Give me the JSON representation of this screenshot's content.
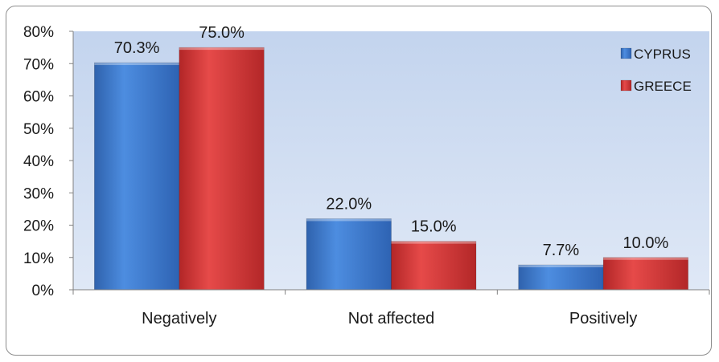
{
  "chart_data": {
    "type": "bar",
    "title": "",
    "xlabel": "",
    "ylabel": "",
    "categories": [
      "Negatively",
      "Not affected",
      "Positively"
    ],
    "series": [
      {
        "name": "CYPRUS",
        "values": [
          70.3,
          22.0,
          7.7
        ],
        "labels": [
          "70.3%",
          "22.0%",
          "7.7%"
        ],
        "color": "#3f7fd3"
      },
      {
        "name": "GREECE",
        "values": [
          75.0,
          15.0,
          10.0
        ],
        "labels": [
          "75.0%",
          "15.0%",
          "10.0%"
        ],
        "color": "#d9393a"
      }
    ],
    "ylim": [
      0,
      80
    ],
    "yticks": [
      "0%",
      "10%",
      "20%",
      "30%",
      "40%",
      "50%",
      "60%",
      "70%",
      "80%"
    ],
    "grid": false,
    "legend_position": "top-right",
    "plot_background": "#c9d8ef"
  }
}
